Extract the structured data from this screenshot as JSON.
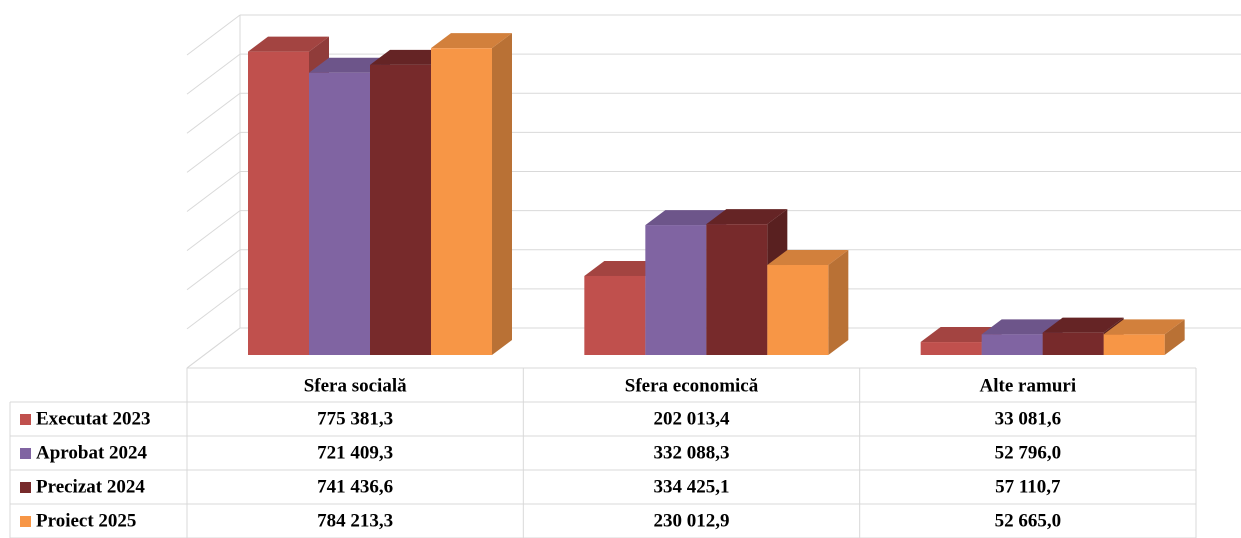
{
  "chart_data": {
    "type": "bar3d",
    "categories": [
      "Sfera socială",
      "Sfera economică",
      "Alte ramuri"
    ],
    "series": [
      {
        "name": "Executat 2023",
        "color": "#c0504d",
        "values": [
          775381.3,
          202013.4,
          33081.6
        ],
        "value_labels": [
          "775 381,3",
          "202 013,4",
          "33 081,6"
        ]
      },
      {
        "name": "Aprobat 2024",
        "color": "#8064a2",
        "values": [
          721409.3,
          332088.3,
          52796.0
        ],
        "value_labels": [
          "721 409,3",
          "332 088,3",
          "52 796,0"
        ]
      },
      {
        "name": "Precizat 2024",
        "color": "#772a2b",
        "values": [
          741436.6,
          334425.1,
          57110.7
        ],
        "value_labels": [
          "741 436,6",
          "334 425,1",
          "57 110,7"
        ]
      },
      {
        "name": "Proiect 2025",
        "color": "#f79646",
        "values": [
          784213.3,
          230012.9,
          52665.0
        ],
        "value_labels": [
          "784 213,3",
          "230 012,9",
          "52 665,0"
        ]
      }
    ],
    "ylim": [
      0,
      800000
    ],
    "yticks": [
      0,
      100000,
      200000,
      300000,
      400000,
      500000,
      600000,
      700000,
      800000
    ],
    "grid": true
  }
}
